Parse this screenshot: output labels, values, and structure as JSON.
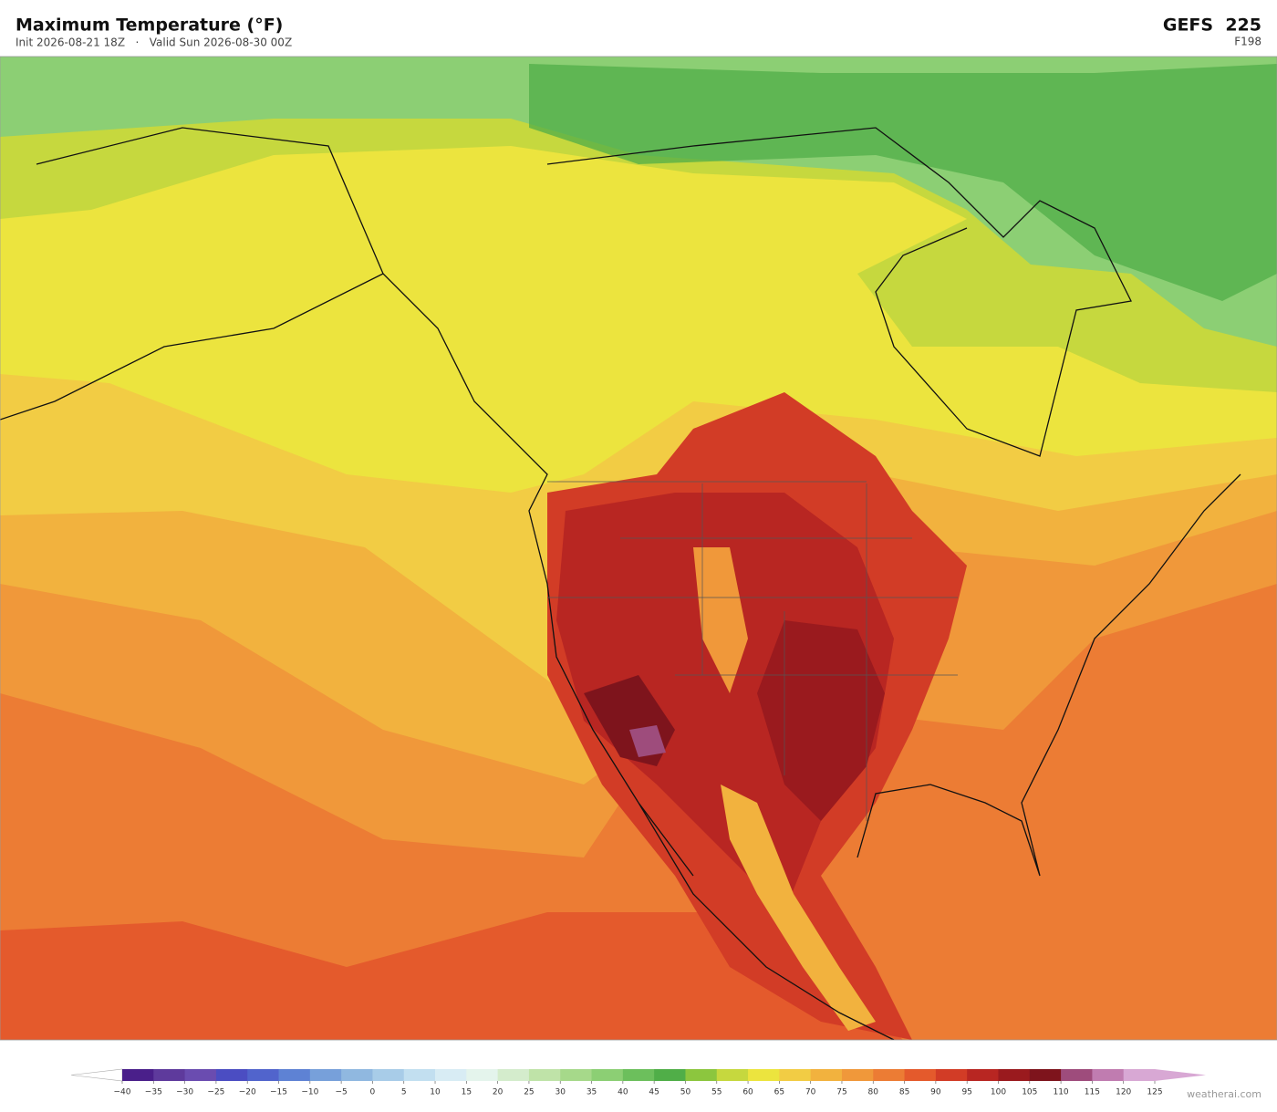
{
  "header": {
    "title": "Maximum Temperature  (°F)",
    "subtitle": "Init 2026-08-21 18Z   ·   Valid Sun 2026-08-30 00Z",
    "model": "GEFS  225",
    "forecast_hour": "F198"
  },
  "colorbar": {
    "ticks": [
      {
        "value": -40,
        "label": "−40"
      },
      {
        "value": -35,
        "label": "−35"
      },
      {
        "value": -30,
        "label": "−30"
      },
      {
        "value": -25,
        "label": "−25"
      },
      {
        "value": -20,
        "label": "−20"
      },
      {
        "value": -15,
        "label": "−15"
      },
      {
        "value": -10,
        "label": "−10"
      },
      {
        "value": -5,
        "label": "−5"
      },
      0,
      5,
      10,
      15,
      20,
      25,
      30,
      35,
      40,
      45,
      50,
      55,
      60,
      65,
      70,
      75,
      80,
      85,
      90,
      95,
      100,
      105,
      110,
      115,
      120,
      125
    ],
    "colors": [
      "#4a1f8a",
      "#5e3a9c",
      "#6a4cb0",
      "#4b4dc2",
      "#5164cc",
      "#5e82d4",
      "#77a0da",
      "#90b8e0",
      "#a8cce8",
      "#c2dff0",
      "#d8ecf4",
      "#e4f4ec",
      "#d4eccc",
      "#bfe3a8",
      "#a6d98a",
      "#8ccf74",
      "#6cbf5c",
      "#50ae48",
      "#8cc63e",
      "#c6d83e",
      "#ece43e",
      "#f2cc44",
      "#f2b23e",
      "#f0983a",
      "#ec7c34",
      "#e45a2c",
      "#d23c26",
      "#b82622",
      "#9a1a1e",
      "#7e141c",
      "#9e4c7c",
      "#c07cb0",
      "#d8a8d4"
    ],
    "under_color": "#ffffff",
    "over_color": "#d8a8d4"
  },
  "watermark": "weatherai.com"
}
